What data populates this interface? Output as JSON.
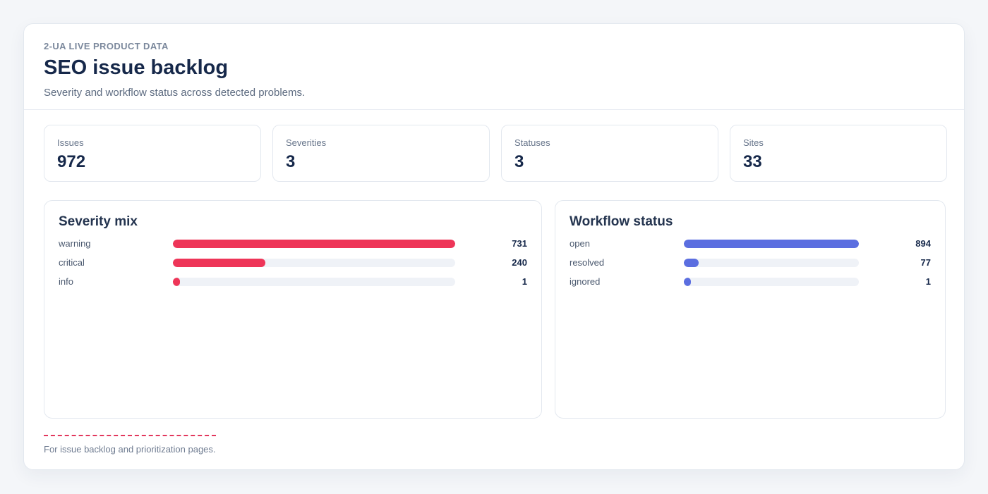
{
  "header": {
    "eyebrow": "2-UA LIVE PRODUCT DATA",
    "title": "SEO issue backlog",
    "subtitle": "Severity and workflow status across detected problems."
  },
  "stats": [
    {
      "label": "Issues",
      "value": "972"
    },
    {
      "label": "Severities",
      "value": "3"
    },
    {
      "label": "Statuses",
      "value": "3"
    },
    {
      "label": "Sites",
      "value": "33"
    }
  ],
  "severity": {
    "title": "Severity mix",
    "color": "#ee3558",
    "max": 731,
    "rows": [
      {
        "label": "warning",
        "value": 731
      },
      {
        "label": "critical",
        "value": 240
      },
      {
        "label": "info",
        "value": 1
      }
    ]
  },
  "workflow": {
    "title": "Workflow status",
    "color": "#5b6ee0",
    "max": 894,
    "rows": [
      {
        "label": "open",
        "value": 894
      },
      {
        "label": "resolved",
        "value": 77
      },
      {
        "label": "ignored",
        "value": 1
      }
    ]
  },
  "footer": {
    "accent_color": "#e2375c",
    "text": "For issue backlog and prioritization pages."
  }
}
